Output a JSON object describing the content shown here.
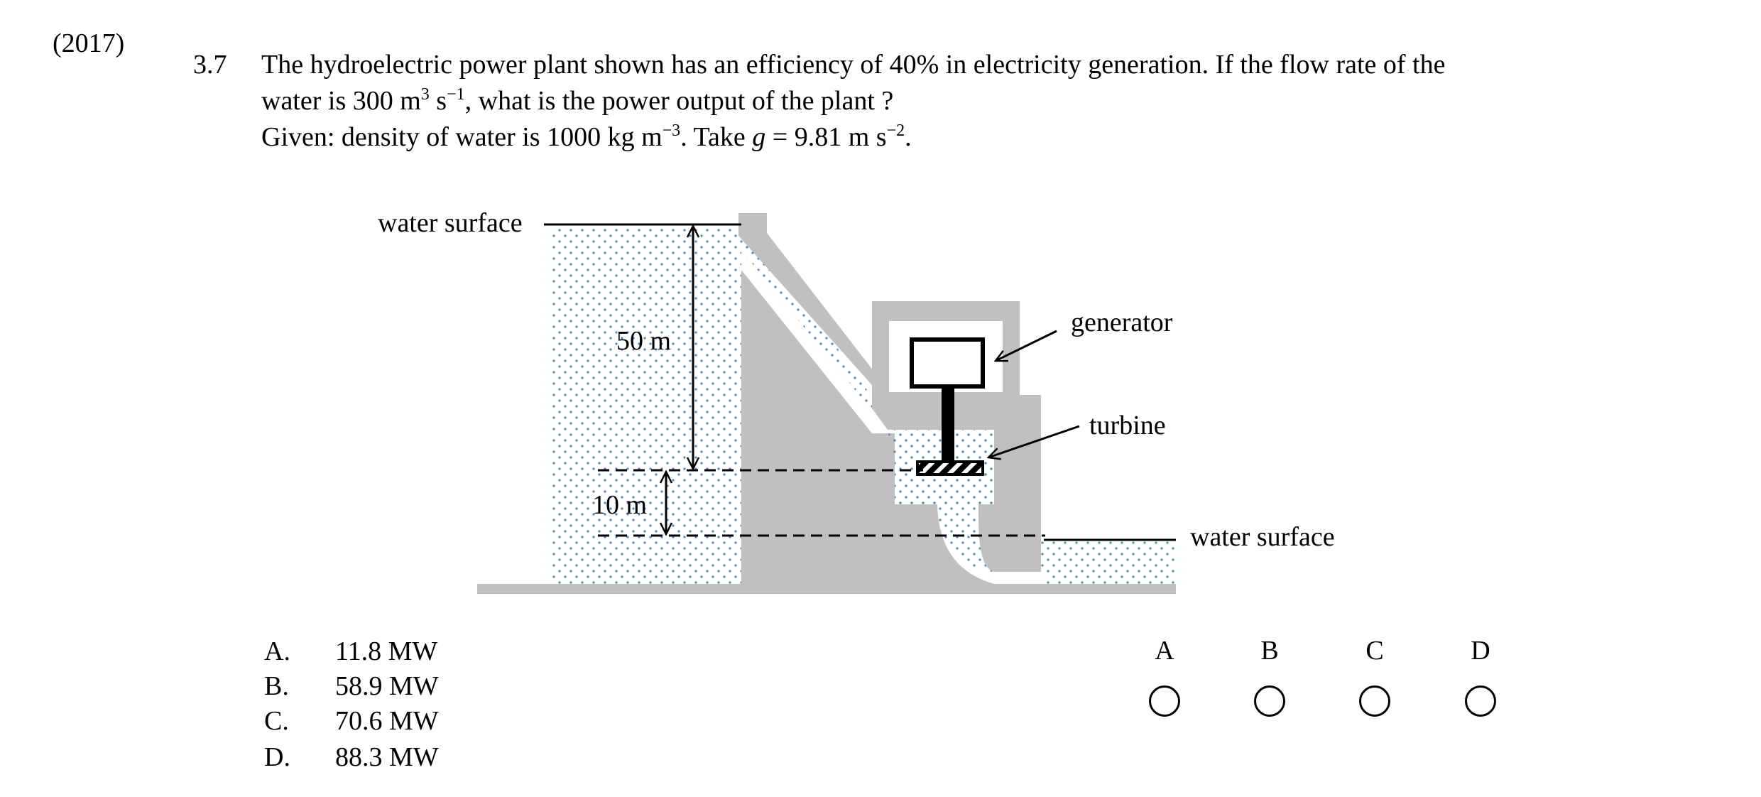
{
  "year": "(2017)",
  "question": {
    "number": "3.7",
    "line1": "The hydroelectric power plant shown has an efficiency of 40% in electricity generation.  If the flow rate of the",
    "line2_a": "water is 300 m",
    "line2_b": "3",
    "line2_c": " s",
    "line2_d": "−1",
    "line2_e": ", what is the power output of the plant ?",
    "line3_a": "Given: density of water is 1000 kg m",
    "line3_b": "−3",
    "line3_c": ".  Take ",
    "line3_d": "g",
    "line3_e": " = 9.81 m s",
    "line3_f": "−2",
    "line3_g": "."
  },
  "diagram": {
    "upper_water_label": "water surface",
    "lower_water_label": "water surface",
    "generator_label": "generator",
    "turbine_label": "turbine",
    "head_label": "50 m",
    "drop_label": "10 m"
  },
  "options": [
    {
      "letter": "A.",
      "value": "11.8 MW"
    },
    {
      "letter": "B.",
      "value": "58.9 MW"
    },
    {
      "letter": "C.",
      "value": "70.6 MW"
    },
    {
      "letter": "D.",
      "value": "88.3 MW"
    }
  ],
  "answer_choices": [
    "A",
    "B",
    "C",
    "D"
  ],
  "colors": {
    "structure": "#c0c0c0",
    "water_dots": "#4a86d4",
    "ink": "#000000"
  }
}
